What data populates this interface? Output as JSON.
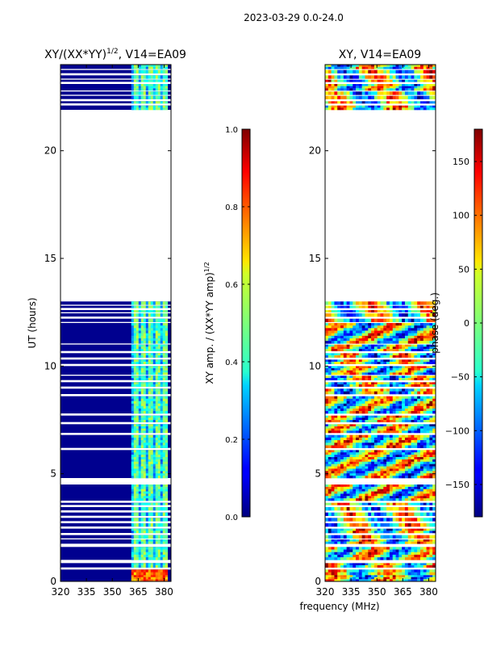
{
  "suptitle": "2023-03-29 0.0-24.0",
  "xlabel": "frequency (MHz)",
  "chart_data": [
    {
      "type": "heatmap",
      "title": "XY/(XX*YY)",
      "title_sup": "1/2",
      "title_suffix": ", V14=EA09",
      "xlabel": "frequency (MHz)",
      "ylabel": "UT (hours)",
      "xlim": [
        320,
        384
      ],
      "ylim": [
        0,
        24
      ],
      "xticks": [
        320,
        335,
        350,
        365,
        380
      ],
      "yticks": [
        0,
        5,
        10,
        15,
        20
      ],
      "colorbar": {
        "label": "XY amp. / (XX*YY amp)",
        "label_sup": "1/2",
        "range": [
          0.0,
          1.0
        ],
        "ticks": [
          "0.0",
          "0.2",
          "0.4",
          "0.6",
          "0.8",
          "1.0"
        ],
        "tick_values": [
          0.0,
          0.2,
          0.4,
          0.6,
          0.8,
          1.0
        ]
      },
      "bright_band_mhz": [
        361,
        382
      ],
      "colormap": "jet"
    },
    {
      "type": "heatmap",
      "title": "XY, V14=EA09",
      "xlabel": "frequency (MHz)",
      "ylabel": "",
      "xlim": [
        320,
        384
      ],
      "ylim": [
        0,
        24
      ],
      "xticks": [
        320,
        335,
        350,
        365,
        380
      ],
      "yticks": [
        0,
        5,
        10,
        15,
        20
      ],
      "colorbar": {
        "label": "phase (deg.)",
        "range": [
          -180,
          180
        ],
        "ticks": [
          "150",
          "100",
          "50",
          "0",
          "−50",
          "−100",
          "−150"
        ],
        "tick_values": [
          150,
          100,
          50,
          0,
          -50,
          -100,
          -150
        ]
      },
      "colormap": "jet"
    }
  ],
  "data_rows_ut": [
    [
      0.0,
      0.3
    ],
    [
      0.3,
      0.55
    ],
    [
      0.65,
      0.85
    ],
    [
      1.0,
      1.6
    ],
    [
      1.75,
      1.95
    ],
    [
      2.0,
      2.15
    ],
    [
      2.25,
      2.45
    ],
    [
      2.55,
      2.7
    ],
    [
      2.8,
      2.95
    ],
    [
      3.05,
      3.2
    ],
    [
      3.3,
      3.45
    ],
    [
      3.55,
      3.65
    ],
    [
      3.75,
      4.5
    ],
    [
      4.8,
      6.1
    ],
    [
      6.2,
      6.8
    ],
    [
      6.9,
      7.3
    ],
    [
      7.4,
      7.7
    ],
    [
      7.8,
      8.6
    ],
    [
      8.7,
      8.95
    ],
    [
      9.05,
      9.25
    ],
    [
      9.35,
      9.55
    ],
    [
      9.6,
      10.0
    ],
    [
      10.1,
      10.3
    ],
    [
      10.4,
      10.6
    ],
    [
      10.7,
      11.0
    ],
    [
      11.05,
      12.0
    ],
    [
      12.05,
      12.2
    ],
    [
      12.3,
      12.45
    ],
    [
      12.5,
      12.6
    ],
    [
      12.7,
      12.8
    ],
    [
      12.85,
      13.0
    ],
    [
      21.9,
      22.1
    ],
    [
      22.2,
      22.3
    ],
    [
      22.4,
      22.55
    ],
    [
      22.6,
      22.75
    ],
    [
      22.8,
      23.1
    ],
    [
      23.2,
      23.3
    ],
    [
      23.35,
      23.5
    ],
    [
      23.6,
      23.75
    ],
    [
      23.8,
      24.0
    ]
  ]
}
